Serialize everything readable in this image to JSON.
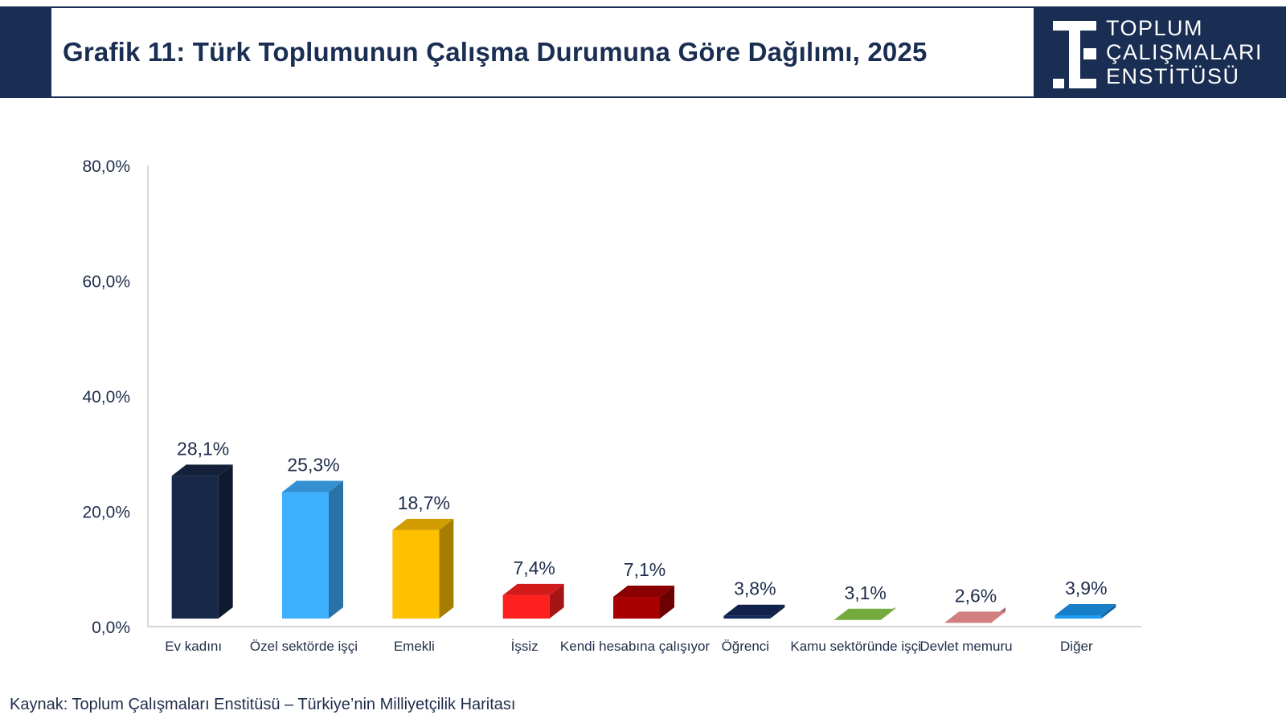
{
  "header": {
    "title": "Grafik 11: Türk Toplumunun Çalışma Durumuna Göre Dağılımı, 2025",
    "logo_lines": [
      "TOPLUM",
      "ÇALIŞMALARI",
      "ENSTİTÜSÜ"
    ],
    "brand_color": "#1a2d52"
  },
  "chart_data": {
    "type": "bar",
    "title": "Grafik 11: Türk Toplumunun Çalışma Durumuna Göre Dağılımı, 2025",
    "xlabel": "",
    "ylabel": "",
    "ylim": [
      0,
      80
    ],
    "yticks": [
      "0,0%",
      "20,0%",
      "40,0%",
      "60,0%",
      "80,0%"
    ],
    "grid": false,
    "categories": [
      "Ev kadını",
      "Özel sektörde işçi",
      "Emekli",
      "İşsiz",
      "Kendi hesabına çalışıyor",
      "Öğrenci",
      "Kamu sektöründe işçi",
      "Devlet memuru",
      "Diğer"
    ],
    "values": [
      28.1,
      25.3,
      18.7,
      7.4,
      7.1,
      3.8,
      3.1,
      2.6,
      3.9
    ],
    "labels": [
      "28,1%",
      "25,3%",
      "18,7%",
      "7,4%",
      "7,1%",
      "3,8%",
      "3,1%",
      "2,6%",
      "3,9%"
    ],
    "colors": [
      "#182848",
      "#3fb0ff",
      "#ffc000",
      "#ff2020",
      "#a80000",
      "#142a5c",
      "#8ed04a",
      "#ff9b9b",
      "#1b9bf3"
    ]
  },
  "footer": {
    "source": "Kaynak: Toplum Çalışmaları Enstitüsü – Türkiye’nin Milliyetçilik Haritası"
  }
}
